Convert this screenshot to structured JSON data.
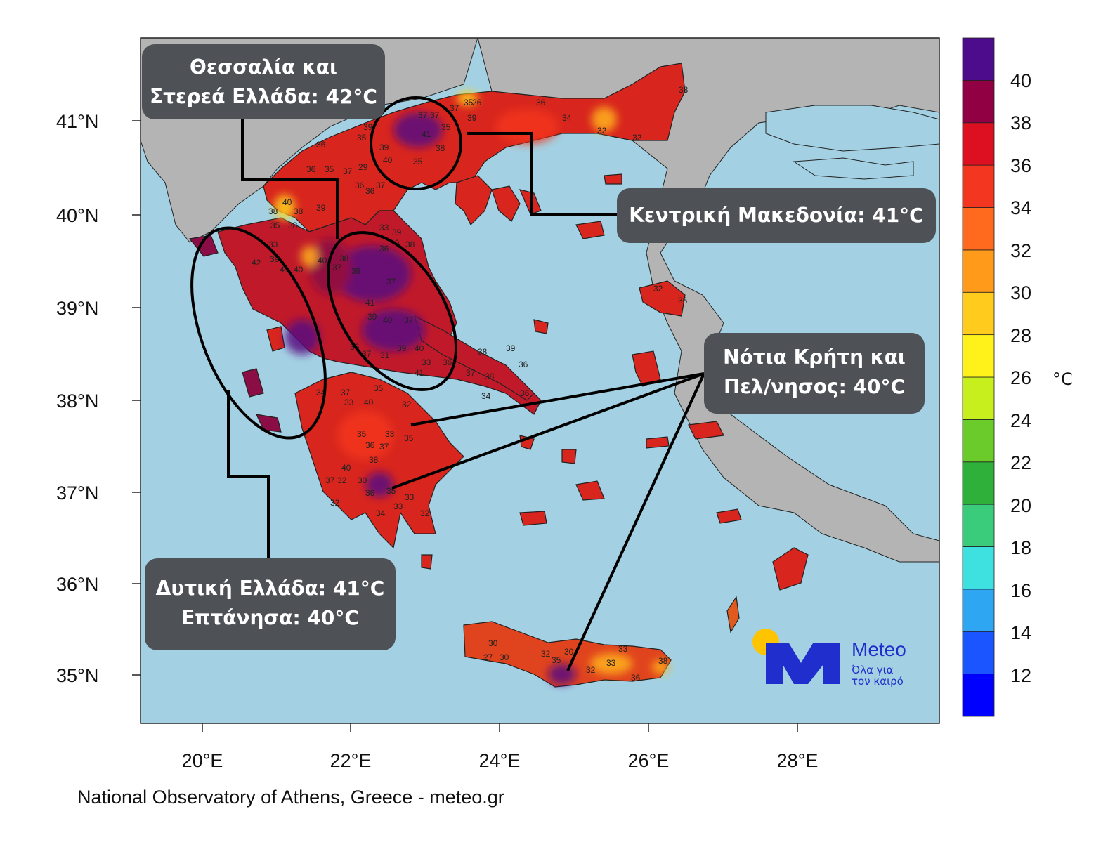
{
  "map": {
    "lat_ticks": [
      "41°N",
      "40°N",
      "39°N",
      "38°N",
      "37°N",
      "36°N",
      "35°N"
    ],
    "lon_ticks": [
      "20°E",
      "22°E",
      "24°E",
      "26°E",
      "28°E"
    ],
    "credit": "National Observatory of Athens, Greece - meteo.gr",
    "sea_color": "#a3d1e3",
    "neighbor_land_color": "#b4b4b4",
    "temperature_labels": [
      "35",
      "26",
      "37",
      "36",
      "34",
      "32",
      "32",
      "38",
      "37",
      "37",
      "41",
      "35",
      "39",
      "38",
      "39",
      "36",
      "35",
      "39",
      "40",
      "35",
      "36",
      "35",
      "37",
      "29",
      "36",
      "37",
      "36",
      "38",
      "40",
      "39",
      "38",
      "35",
      "38",
      "33",
      "33",
      "39",
      "40",
      "38",
      "39",
      "37",
      "38",
      "36",
      "39",
      "42",
      "41",
      "40",
      "40",
      "37",
      "41",
      "40",
      "39",
      "37",
      "36",
      "37",
      "31",
      "39",
      "40",
      "33",
      "36",
      "41",
      "38",
      "39",
      "37",
      "38",
      "34",
      "36",
      "36",
      "34",
      "37",
      "33",
      "40",
      "35",
      "32",
      "33",
      "35",
      "36",
      "37",
      "35",
      "38",
      "40",
      "32",
      "30",
      "37",
      "36",
      "35",
      "33",
      "32",
      "32",
      "34",
      "33",
      "30",
      "27",
      "30",
      "32",
      "35",
      "30",
      "32",
      "33",
      "33",
      "36",
      "38",
      "32",
      "36"
    ]
  },
  "colorbar": {
    "ticks": [
      "40",
      "38",
      "36",
      "34",
      "32",
      "30",
      "28",
      "26",
      "24",
      "22",
      "20",
      "18",
      "16",
      "14",
      "12"
    ],
    "unit": "°C",
    "colors": [
      "#0000ff",
      "#1a55ff",
      "#2ea6f2",
      "#3fe0e0",
      "#3acc7a",
      "#2fb03a",
      "#6acb2a",
      "#c7ee1d",
      "#fff21b",
      "#ffcc1e",
      "#ff9a1a",
      "#ff6a1e",
      "#f2361f",
      "#dc1020",
      "#900043",
      "#4c0c8c"
    ]
  },
  "annotations": {
    "thessaly": {
      "line1": "Θεσσαλία και",
      "line2": "Στερεά Ελλάδα: 42°C"
    },
    "macedonia": {
      "line1": "Κεντρική Μακεδονία: 41°C"
    },
    "crete": {
      "line1": "Νότια Κρήτη και",
      "line2": "Πελ/νησος: 40°C"
    },
    "west": {
      "line1": "Δυτική Ελλάδα: 41°C",
      "line2": "Επτάνησα: 40°C"
    }
  },
  "logo": {
    "name": "Meteo",
    "tagline1": "Όλα για",
    "tagline2": "τον καιρό",
    "brand_color": "#1f2ecc",
    "sun_color": "#ffc400"
  }
}
